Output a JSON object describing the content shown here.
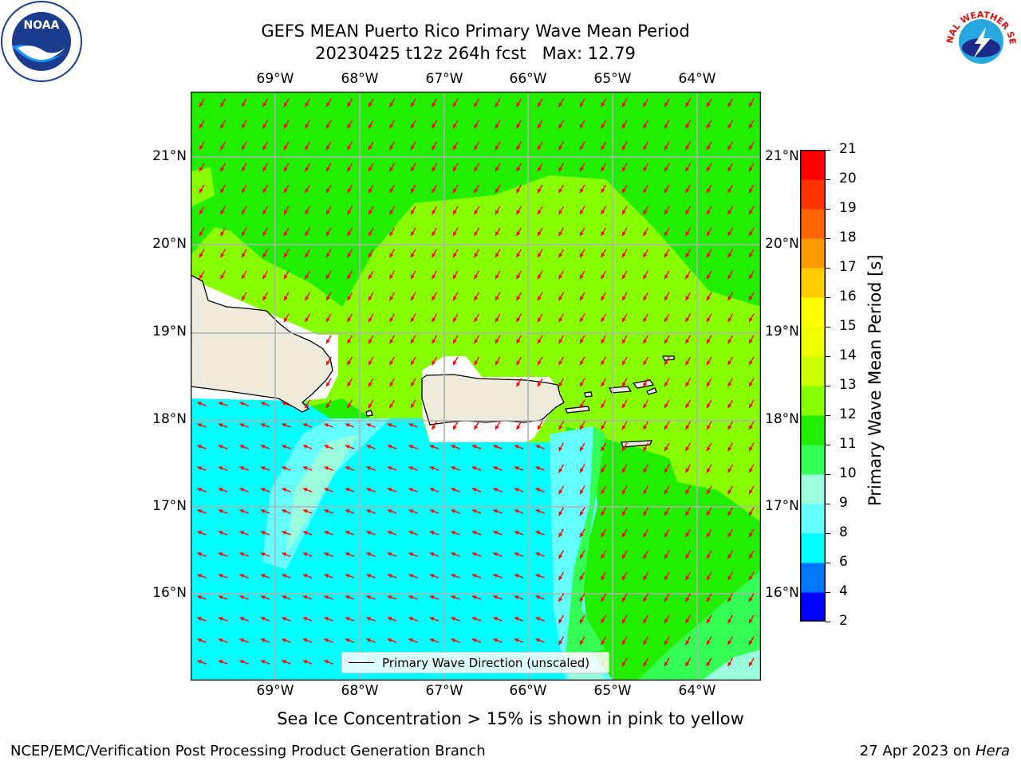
{
  "header": {
    "title_line1": "GEFS MEAN Puerto Rico Primary Wave Mean Period",
    "title_line2": "20230425 t12z 264h fcst   Max: 12.79"
  },
  "logos": {
    "noaa_text": "NOAA",
    "nws_text": "NATIONAL WEATHER SERVICE"
  },
  "map": {
    "longitude_ticks": [
      "69°W",
      "68°W",
      "67°W",
      "66°W",
      "65°W",
      "64°W"
    ],
    "latitude_ticks": [
      "21°N",
      "20°N",
      "19°N",
      "18°N",
      "17°N",
      "16°N"
    ],
    "lon_range": [
      -70.0,
      -63.25
    ],
    "lat_range": [
      15.05,
      21.75
    ],
    "grid": true,
    "ocean_colors": {
      "p6_8": "#00ffff",
      "p8_9": "#66ffff",
      "p9_10": "#99ffdd",
      "p10_11": "#33ff55",
      "p11_12": "#22ee00",
      "p12_13": "#88ff00"
    },
    "land_color": "#efecdc",
    "arrow_color": "#ff0000",
    "legend_label": "Primary Wave Direction (unscaled)"
  },
  "colorbar": {
    "label": "Primary Wave Mean Period [s]",
    "ticks": [
      "21",
      "20",
      "19",
      "18",
      "17",
      "16",
      "15",
      "14",
      "13",
      "12",
      "11",
      "10",
      "9",
      "8",
      "6",
      "4",
      "2"
    ],
    "colors_bottom_to_top": [
      "#0000ff",
      "#0077ff",
      "#00ffff",
      "#66ffff",
      "#99ffdd",
      "#33ff55",
      "#22ee00",
      "#88ff00",
      "#ccff00",
      "#eeff00",
      "#ffff00",
      "#ffcc00",
      "#ff9900",
      "#ff6600",
      "#ff3300",
      "#ff0000"
    ]
  },
  "captions": {
    "sea_ice_note": "Sea Ice Concentration > 15% is shown in pink to yellow"
  },
  "footer": {
    "left": "NCEP/EMC/Verification Post Processing Product Generation Branch",
    "right_prefix": "27 Apr 2023 on ",
    "right_machine": "Hera"
  }
}
